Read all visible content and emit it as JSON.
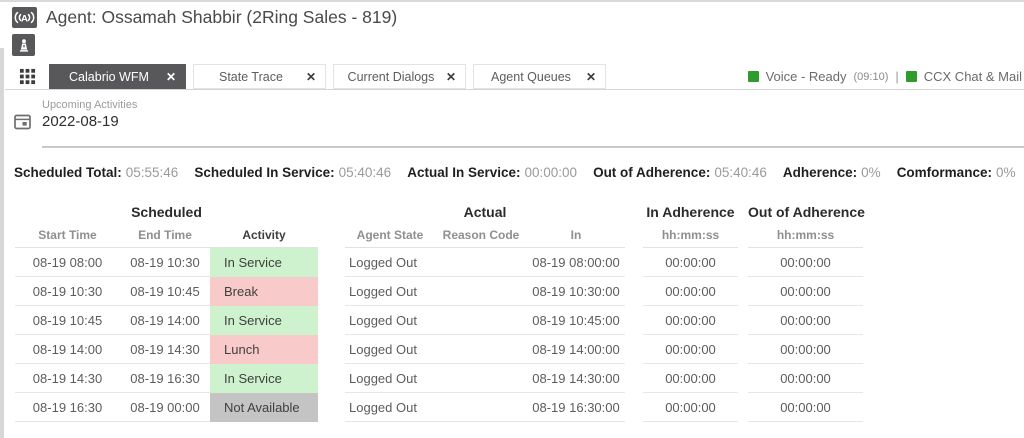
{
  "header": {
    "title": "Agent: Ossamah Shabbir (2Ring Sales - 819)"
  },
  "tab_bar": {
    "close_glyph": "✕",
    "tabs": [
      {
        "label": "Calabrio WFM",
        "active": true
      },
      {
        "label": "State Trace",
        "active": false
      },
      {
        "label": "Current Dialogs",
        "active": false
      },
      {
        "label": "Agent Queues",
        "active": false
      }
    ]
  },
  "status_bar": {
    "indicator_color": "#2e9b2e",
    "voice": {
      "label": "Voice - Ready",
      "timer": "(09:10)"
    },
    "divider": "|",
    "chat": {
      "label": "CCX Chat & Mail"
    }
  },
  "date_field": {
    "label": "Upcoming Activities",
    "value": "2022-08-19"
  },
  "summary": [
    {
      "label": "Scheduled Total:",
      "value": "05:55:46"
    },
    {
      "label": "Scheduled In Service:",
      "value": "05:40:46"
    },
    {
      "label": "Actual In Service:",
      "value": "00:00:00"
    },
    {
      "label": "Out of Adherence:",
      "value": "05:40:46"
    },
    {
      "label": "Adherence:",
      "value": "0%"
    },
    {
      "label": "Comformance:",
      "value": "0%"
    }
  ],
  "table": {
    "groups": {
      "scheduled": {
        "title": "Scheduled",
        "columns": [
          "Start Time",
          "End Time",
          "Activity"
        ]
      },
      "actual": {
        "title": "Actual",
        "columns": [
          "Agent State",
          "Reason Code",
          "In"
        ]
      },
      "in_adherence": {
        "title": "In Adherence",
        "columns": [
          "hh:mm:ss"
        ]
      },
      "out_of_adherence": {
        "title": "Out of Adherence",
        "columns": [
          "hh:mm:ss"
        ]
      }
    },
    "activity_colors": {
      "in_service": "#cdf2cd",
      "break": "#f8caca",
      "lunch": "#f8caca",
      "not_available": "#c4c4c4"
    },
    "rows": [
      {
        "start_time": "08-19 08:00",
        "end_time": "08-19 10:30",
        "activity": "In Service",
        "activity_key": "in_service",
        "agent_state": "Logged Out",
        "reason_code": "",
        "in": "08-19 08:00:00",
        "in_adherence": "00:00:00",
        "out_of_adherence": "00:00:00"
      },
      {
        "start_time": "08-19 10:30",
        "end_time": "08-19 10:45",
        "activity": "Break",
        "activity_key": "break",
        "agent_state": "Logged Out",
        "reason_code": "",
        "in": "08-19 10:30:00",
        "in_adherence": "00:00:00",
        "out_of_adherence": "00:00:00"
      },
      {
        "start_time": "08-19 10:45",
        "end_time": "08-19 14:00",
        "activity": "In Service",
        "activity_key": "in_service",
        "agent_state": "Logged Out",
        "reason_code": "",
        "in": "08-19 10:45:00",
        "in_adherence": "00:00:00",
        "out_of_adherence": "00:00:00"
      },
      {
        "start_time": "08-19 14:00",
        "end_time": "08-19 14:30",
        "activity": "Lunch",
        "activity_key": "lunch",
        "agent_state": "Logged Out",
        "reason_code": "",
        "in": "08-19 14:00:00",
        "in_adherence": "00:00:00",
        "out_of_adherence": "00:00:00"
      },
      {
        "start_time": "08-19 14:30",
        "end_time": "08-19 16:30",
        "activity": "In Service",
        "activity_key": "in_service",
        "agent_state": "Logged Out",
        "reason_code": "",
        "in": "08-19 14:30:00",
        "in_adherence": "00:00:00",
        "out_of_adherence": "00:00:00"
      },
      {
        "start_time": "08-19 16:30",
        "end_time": "08-19 00:00",
        "activity": "Not Available",
        "activity_key": "not_available",
        "agent_state": "Logged Out",
        "reason_code": "",
        "in": "08-19 16:30:00",
        "in_adherence": "00:00:00",
        "out_of_adherence": "00:00:00"
      }
    ]
  }
}
